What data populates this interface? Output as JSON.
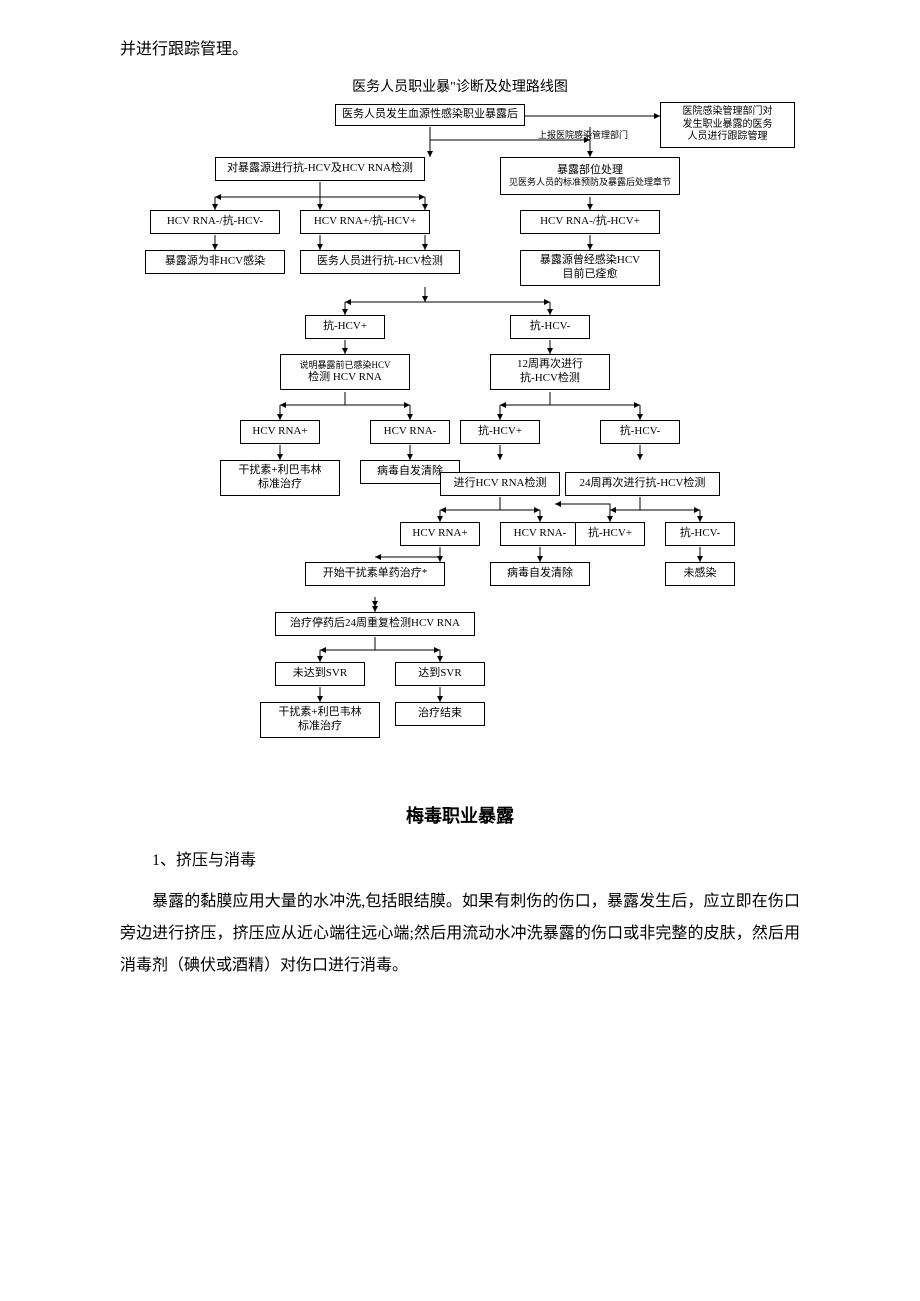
{
  "colors": {
    "page_background": "#ffffff",
    "text_color": "#000000",
    "node_border": "#000000",
    "arrow_stroke": "#000000",
    "arrow_fill": "#000000"
  },
  "intro_text": "并进行跟踪管理。",
  "diagram": {
    "title": "医务人员职业暴\"诊断及处理路线图",
    "side_label_report": "上报医院感染管理部门",
    "nodes": {
      "n_start": "医务人员发生血源性感染职业暴露后",
      "n_mgmt": "医院感染管理部门对\n发生职业暴露的医务\n人员进行跟踪管理",
      "n_test_source": "对暴露源进行抗-HCV及HCV RNA检测",
      "n_site": "暴露部位处理",
      "n_site_sub": "见医务人员的标准预防及暴露后处理章节",
      "n_r1a": "HCV RNA-/抗-HCV-",
      "n_r1b": "HCV RNA+/抗-HCV+",
      "n_r1c": "HCV RNA-/抗-HCV+",
      "n_non": "暴露源为非HCV感染",
      "n_staff_test": "医务人员进行抗-HCV检测",
      "n_past": "暴露源曾经感染HCV\n目前已痊愈",
      "n_pos1": "抗-HCV+",
      "n_neg1": "抗-HCV-",
      "n_explain": "说明暴露前已感染HCV",
      "n_explain2": "检测 HCV RNA",
      "n_12w": "12周再次进行\n抗-HCV检测",
      "n_rna_pos": "HCV RNA+",
      "n_rna_neg": "HCV RNA-",
      "n_pos2": "抗-HCV+",
      "n_neg2": "抗-HCV-",
      "n_std_tx": "干扰素+利巴韦林\n标准治疗",
      "n_clear1": "病毒自发清除",
      "n_do_rna": "进行HCV RNA检测",
      "n_24w": "24周再次进行抗-HCV检测",
      "n_rna_pos2": "HCV RNA+",
      "n_rna_neg2": "HCV RNA-",
      "n_pos3": "抗-HCV+",
      "n_neg3": "抗-HCV-",
      "n_ifn_mono": "开始干扰素单药治疗*",
      "n_clear2": "病毒自发清除",
      "n_uninf": "未感染",
      "n_retest24": "治疗停药后24周重复检测HCV RNA",
      "n_no_svr": "未达到SVR",
      "n_svr": "达到SVR",
      "n_std_tx2": "干扰素+利巴韦林\n标准治疗",
      "n_tx_end": "治疗结束"
    }
  },
  "section2": {
    "title": "梅毒职业暴露",
    "sub_head": "1、挤压与消毒",
    "para": "暴露的黏膜应用大量的水冲洗,包括眼结膜。如果有刺伤的伤口，暴露发生后，应立即在伤口旁边进行挤压，挤压应从近心端往远心端;然后用流动水冲洗暴露的伤口或非完整的皮肤，然后用消毒剂（碘伏或酒精）对伤口进行消毒。"
  }
}
